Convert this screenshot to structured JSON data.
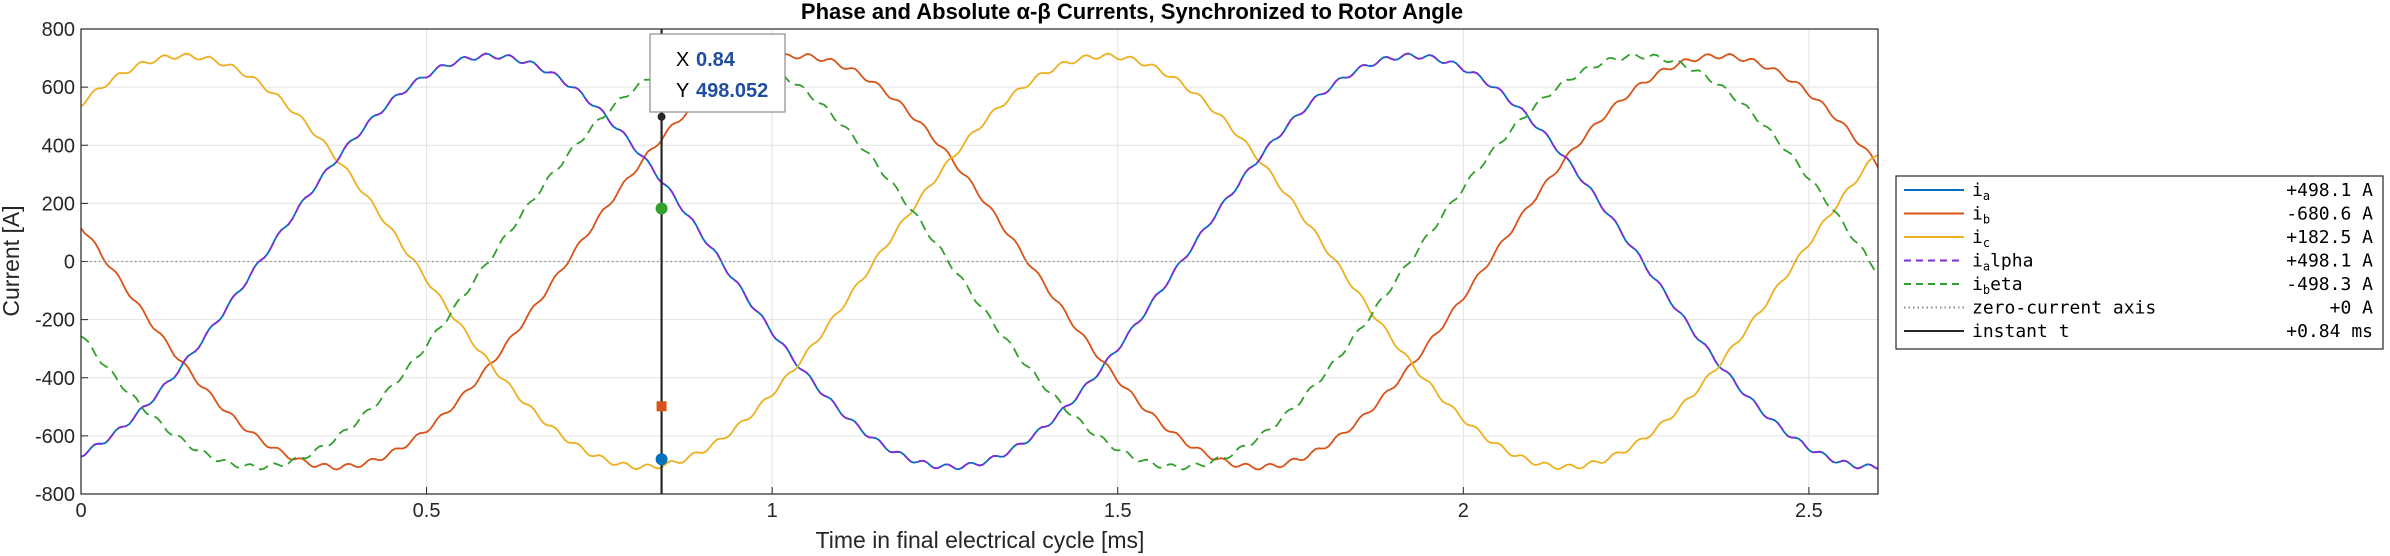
{
  "chart_data": {
    "type": "line",
    "title": "Phase and Absolute α-β Currents, Synchronized to Rotor Angle",
    "xlabel": "Time in final electrical cycle [ms]",
    "ylabel": "Current [A]",
    "xlim": [
      0,
      2.6
    ],
    "ylim": [
      -800,
      800
    ],
    "xticks": [
      0,
      0.5,
      1,
      1.5,
      2,
      2.5
    ],
    "xtick_labels": [
      "0",
      "0.5",
      "1",
      "1.5",
      "2",
      "2.5"
    ],
    "yticks": [
      800,
      600,
      400,
      200,
      0,
      -200,
      -400,
      -600,
      -800
    ],
    "ytick_labels": [
      "800",
      "600",
      "400",
      "200",
      "0",
      "-200",
      "-400",
      "-600",
      "-800"
    ],
    "grid": true,
    "legend_placement": "outside-right",
    "series": [
      {
        "name": "ia",
        "label_main": "i",
        "label_sub": "a",
        "label_rest": "",
        "value_text": "+498.1 A",
        "color": "#0072bd",
        "dash": "solid",
        "amplitude": 707,
        "period_ms": 1.3333,
        "phase_deg": -160
      },
      {
        "name": "ib",
        "label_main": "i",
        "label_sub": "b",
        "label_rest": "",
        "value_text": "-680.6 A",
        "color": "#d95319",
        "dash": "solid",
        "amplitude": 707,
        "period_ms": 1.3333,
        "phase_deg": 80
      },
      {
        "name": "ic",
        "label_main": "i",
        "label_sub": "c",
        "label_rest": "",
        "value_text": "+182.5 A",
        "color": "#edb120",
        "dash": "solid",
        "amplitude": 707,
        "period_ms": 1.3333,
        "phase_deg": -40
      },
      {
        "name": "ialpha",
        "label_main": "i",
        "label_sub": "a",
        "label_rest": "lpha",
        "value_text": "+498.1 A",
        "color": "#7e2fd6",
        "dash": "dashed",
        "amplitude": 707,
        "period_ms": 1.3333,
        "phase_deg": -160
      },
      {
        "name": "ibeta",
        "label_main": "i",
        "label_sub": "b",
        "label_rest": "eta",
        "value_text": "-498.3 A",
        "color": "#31a02c",
        "dash": "dashed",
        "amplitude": 707,
        "period_ms": 1.3333,
        "phase_deg": 111
      },
      {
        "name": "zero-current axis",
        "label_main": "zero-current axis",
        "label_sub": "",
        "label_rest": "",
        "value_text": "+0 A",
        "color": "#8c8c8c",
        "dash": "dotted",
        "constant": 0
      },
      {
        "name": "instant t",
        "label_main": "instant t",
        "label_sub": "",
        "label_rest": "",
        "value_text": "+0.84 ms",
        "color": "#262626",
        "dash": "solid",
        "vertical_at": 0.84
      }
    ],
    "markers": [
      {
        "series": "instant",
        "x": 0.84,
        "y": 498.052,
        "color": "#262626"
      },
      {
        "series": "ic",
        "x": 0.84,
        "y": 182.5,
        "color": "#31a02c"
      },
      {
        "series": "ibeta",
        "x": 0.84,
        "y": -498.3,
        "color": "#d95319"
      },
      {
        "series": "ib",
        "x": 0.84,
        "y": -680.6,
        "color": "#0072bd"
      }
    ],
    "datatip": {
      "x_label": "X",
      "x_value": "0.84",
      "y_label": "Y",
      "y_value": "498.052"
    }
  }
}
